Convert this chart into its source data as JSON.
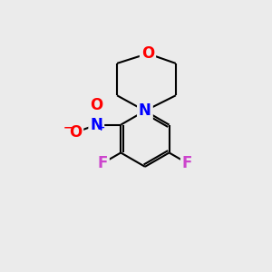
{
  "background_color": "#ebebeb",
  "bond_color": "#000000",
  "bond_width": 1.5,
  "atom_colors": {
    "O": "#ff0000",
    "N": "#0000ff",
    "F": "#cc44cc"
  },
  "font_size": 12
}
